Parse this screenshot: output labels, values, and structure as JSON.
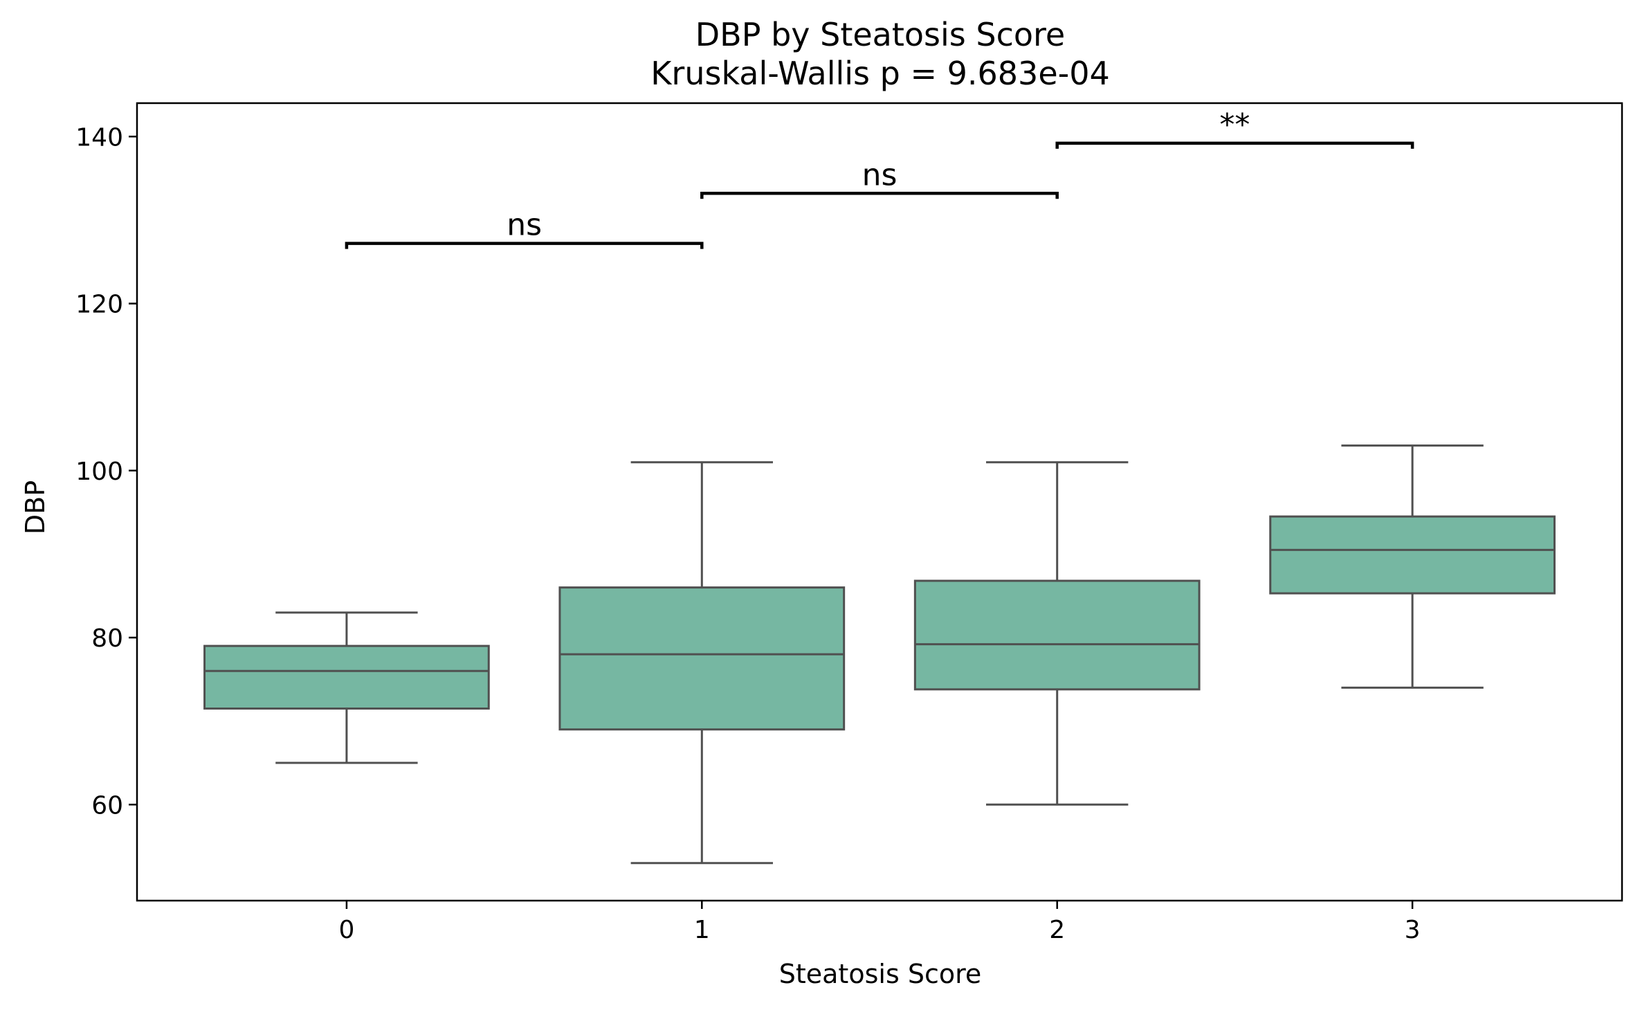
{
  "chart_data": {
    "type": "box",
    "title": "DBP by Steatosis Score",
    "subtitle": "Kruskal-Wallis p = 9.683e-04",
    "xlabel": "Steatosis Score",
    "ylabel": "DBP",
    "ylim": [
      48.5,
      144
    ],
    "yticks": [
      60,
      80,
      100,
      120,
      140
    ],
    "categories": [
      "0",
      "1",
      "2",
      "3"
    ],
    "grid": false,
    "box_color": "#76b7a2",
    "line_color": "#505050",
    "boxes": [
      {
        "category": "0",
        "whisker_low": 65,
        "q1": 71.5,
        "median": 76,
        "q3": 79,
        "whisker_high": 83
      },
      {
        "category": "1",
        "whisker_low": 53,
        "q1": 69,
        "median": 78,
        "q3": 86,
        "whisker_high": 101
      },
      {
        "category": "2",
        "whisker_low": 60,
        "q1": 73.8,
        "median": 79.2,
        "q3": 86.8,
        "whisker_high": 101
      },
      {
        "category": "3",
        "whisker_low": 74,
        "q1": 85.3,
        "median": 90.5,
        "q3": 94.5,
        "whisker_high": 103
      }
    ],
    "annotations": [
      {
        "from": 0,
        "to": 1,
        "y": 127.2,
        "label": "ns"
      },
      {
        "from": 1,
        "to": 2,
        "y": 133.2,
        "label": "ns"
      },
      {
        "from": 2,
        "to": 3,
        "y": 139.2,
        "label": "**"
      }
    ]
  }
}
